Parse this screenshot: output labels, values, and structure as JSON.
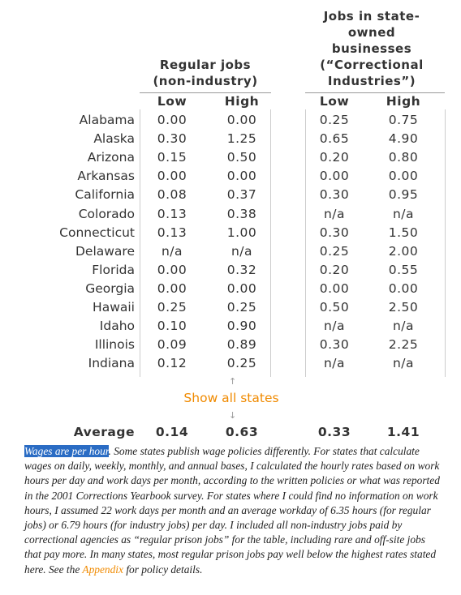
{
  "header": {
    "group1": "Regular jobs (non-industry)",
    "group2": "Jobs in state-owned businesses (“Correctional Industries”)",
    "sub": [
      "Low",
      "High",
      "Low",
      "High"
    ]
  },
  "table": {
    "rows": [
      [
        "Alabama",
        "0.00",
        "0.00",
        "0.25",
        "0.75"
      ],
      [
        "Alaska",
        "0.30",
        "1.25",
        "0.65",
        "4.90"
      ],
      [
        "Arizona",
        "0.15",
        "0.50",
        "0.20",
        "0.80"
      ],
      [
        "Arkansas",
        "0.00",
        "0.00",
        "0.00",
        "0.00"
      ],
      [
        "California",
        "0.08",
        "0.37",
        "0.30",
        "0.95"
      ],
      [
        "Colorado",
        "0.13",
        "0.38",
        "n/a",
        "n/a"
      ],
      [
        "Connecticut",
        "0.13",
        "1.00",
        "0.30",
        "1.50"
      ],
      [
        "Delaware",
        "n/a",
        "n/a",
        "0.25",
        "2.00"
      ],
      [
        "Florida",
        "0.00",
        "0.32",
        "0.20",
        "0.55"
      ],
      [
        "Georgia",
        "0.00",
        "0.00",
        "0.00",
        "0.00"
      ],
      [
        "Hawaii",
        "0.25",
        "0.25",
        "0.50",
        "2.50"
      ],
      [
        "Idaho",
        "0.10",
        "0.90",
        "n/a",
        "n/a"
      ],
      [
        "Illinois",
        "0.09",
        "0.89",
        "0.30",
        "2.25"
      ],
      [
        "Indiana",
        "0.12",
        "0.25",
        "n/a",
        "n/a"
      ]
    ]
  },
  "show_all": "Show all states",
  "average": {
    "label": "Average",
    "values": [
      "0.14",
      "0.63",
      "0.33",
      "1.41"
    ]
  },
  "note": {
    "highlight": "Wages are per hour",
    "text": ". Some states publish wage policies differently. For states that calculate wages on daily, weekly, monthly, and annual bases, I calculated the hourly rates based on work hours per day and work days per month, according to the written policies or what was reported in the 2001 Corrections Yearbook survey. For states where I could find no information on work hours, I assumed 22 work days per month and an average workday of 6.35 hours (for regular jobs) or 6.79 hours (for industry jobs) per day. I included all non-industry jobs paid by correctional agencies as “regular prison jobs” for the table, including rare and off-site jobs that pay more. In many states, most regular prison jobs pay well below the highest rates stated here. See the ",
    "link": "Appendix",
    "end": " for policy details."
  }
}
